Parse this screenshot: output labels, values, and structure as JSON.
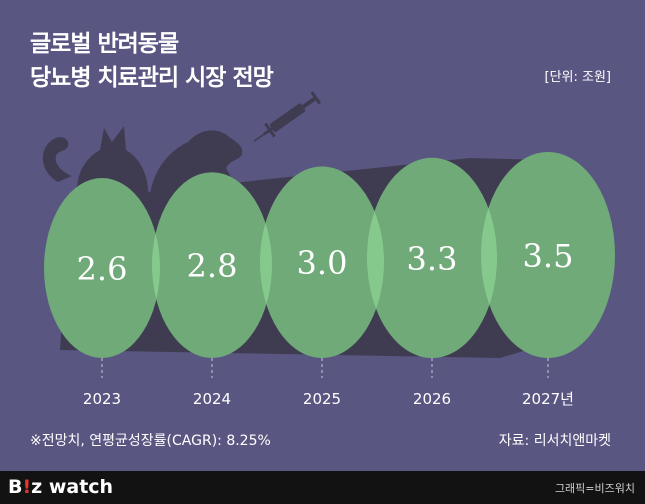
{
  "header": {
    "title_line1": "글로벌 반려동물",
    "title_line2": "당뇨병 치료관리 시장 전망",
    "unit": "[단위: 조원]"
  },
  "footer": {
    "note": "※전망치, 연평균성장률(CAGR): 8.25%",
    "source": "자료: 리서치앤마켓",
    "logo_prefix": "B",
    "logo_accent": "!",
    "logo_mid": "z",
    "logo_suffix": " watch",
    "credit": "그래픽=비즈워치"
  },
  "colors": {
    "background": "#5a5682",
    "ellipse_fill": "#6faa78",
    "overlap_fill": "#86c98d",
    "silhouette": "#3f3c52"
  },
  "icons": [
    "cat-silhouette-icon",
    "dog-silhouette-icon",
    "syringe-icon"
  ],
  "chart_data": {
    "type": "bar",
    "categories": [
      "2023",
      "2024",
      "2025",
      "2026",
      "2027년"
    ],
    "values": [
      2.6,
      2.8,
      3.0,
      3.3,
      3.5
    ],
    "value_labels": [
      "2.6",
      "2.8",
      "3.0",
      "3.3",
      "3.5"
    ],
    "title": "글로벌 반려동물 당뇨병 치료관리 시장 전망",
    "ylabel": "조원"
  }
}
